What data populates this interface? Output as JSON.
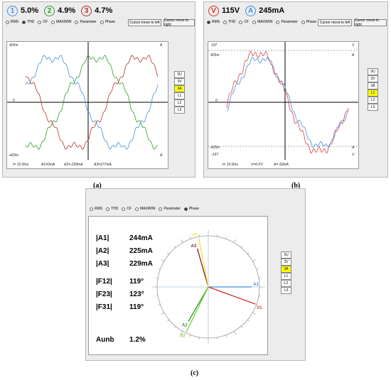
{
  "panel_a": {
    "measurements": [
      {
        "id": "1",
        "value": "5.0%",
        "color": "#3a8fe0"
      },
      {
        "id": "2",
        "value": "4.9%",
        "color": "#2d9a2d"
      },
      {
        "id": "3",
        "value": "4.7%",
        "color": "#b0302a"
      }
    ],
    "radios": [
      "RMS",
      "THD",
      "CF",
      "MAX/MIN",
      "Parameter",
      "Phase"
    ],
    "radio_selected": "THD",
    "cursor_left": "Cursor move to left",
    "cursor_right": "Cursor move to right",
    "y_top": "425m",
    "y_zero": "0",
    "y_bottom": "-425m",
    "unit_top": "A",
    "unit_bottom": "A",
    "footer": [
      "t= 10.0ms",
      "A1=0mA",
      "A2=-239mA",
      "A3=277mA"
    ],
    "side_buttons": [
      "3U",
      "3V",
      "3A",
      "L1",
      "L2",
      "L3"
    ],
    "side_selected": "3A",
    "caption": "(a)"
  },
  "panel_b": {
    "measurements": [
      {
        "id": "V",
        "value": "115V",
        "color": "#d9302a"
      },
      {
        "id": "A",
        "value": "245mA",
        "color": "#3a8fe0"
      }
    ],
    "radios": [
      "RMS",
      "THD",
      "CF",
      "MAX/MIN",
      "Parameter",
      "Phase"
    ],
    "radio_selected": "RMS",
    "cursor_left": "Cursor move to left",
    "cursor_right": "Cursor move to right",
    "y_top": "197",
    "y_top2": "425m",
    "y_zero": "0",
    "y_bottom2": "-425m",
    "y_bottom": "-197",
    "unit_top": "V",
    "unit_top2": "A",
    "unit_bottom2": "A",
    "unit_bottom": "V",
    "footer": [
      "t= 10.0ms",
      "V=0.0V",
      "A=-32mA"
    ],
    "side_buttons": [
      "3U",
      "3V",
      "3A",
      "L1",
      "L2",
      "L3"
    ],
    "side_selected": "L1",
    "caption": "(b)"
  },
  "panel_c": {
    "radios": [
      "RMS",
      "THD",
      "CF",
      "MAX/MIN",
      "Parameter",
      "Phase"
    ],
    "radio_selected": "Phase",
    "amps": [
      {
        "label": "|A1|",
        "value": "244mA"
      },
      {
        "label": "|A2|",
        "value": "225mA"
      },
      {
        "label": "|A3|",
        "value": "229mA"
      }
    ],
    "phases": [
      {
        "label": "|F12|",
        "value": "119°"
      },
      {
        "label": "|F23|",
        "value": "123°"
      },
      {
        "label": "|F31|",
        "value": "119°"
      }
    ],
    "unb_label": "Aunb",
    "unb_value": "1.2%",
    "vectors": [
      {
        "name": "A1",
        "color": "#3a8fe0",
        "angle_deg": 0,
        "length": 0.85
      },
      {
        "name": "V1",
        "color": "#d9302a",
        "angle_deg": -20,
        "length": 0.98
      },
      {
        "name": "A2",
        "color": "#2d9a2d",
        "angle_deg": -120,
        "length": 0.78
      },
      {
        "name": "V2",
        "color": "#7ad33a",
        "angle_deg": -116,
        "length": 0.98
      },
      {
        "name": "A3",
        "color": "#8b1a2a",
        "angle_deg": 106,
        "length": 0.78
      },
      {
        "name": "V3",
        "color": "#e6e640",
        "angle_deg": 101,
        "length": 0.98
      }
    ],
    "side_buttons": [
      "3U",
      "3V",
      "3A",
      "L1",
      "L2",
      "L3"
    ],
    "side_selected": "3A",
    "caption": "(c)"
  }
}
